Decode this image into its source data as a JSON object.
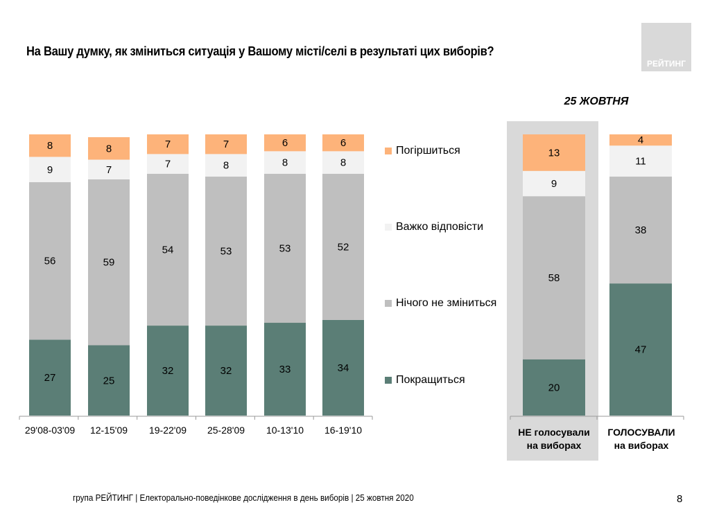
{
  "title": "На Вашу думку, як зміниться ситуація у Вашому місті/селі в результаті цих виборів?",
  "logo": "РЕЙТИНГ",
  "date_label": "25 ЖОВТНЯ",
  "footer": "група РЕЙТИНГ | Електорально-поведінкове дослідження в день виборів | 25 жовтня 2020",
  "page_number": "8",
  "colors": {
    "worse": "#fdb37a",
    "hard_to_say": "#f2f2f2",
    "no_change": "#bfbfbf",
    "better": "#5b7e76",
    "highlight": "#d9d9d9"
  },
  "legend": [
    {
      "key": "worse",
      "label": "Погіршиться"
    },
    {
      "key": "hard_to_say",
      "label": "Важко відповісти"
    },
    {
      "key": "no_change",
      "label": "Нічого не зміниться"
    },
    {
      "key": "better",
      "label": "Покращиться"
    }
  ],
  "chart_data": [
    {
      "type": "bar",
      "stacked": true,
      "title": "",
      "xlabel": "",
      "ylabel": "",
      "ylim": [
        0,
        100
      ],
      "grid": false,
      "categories": [
        "29'08-03'09",
        "12-15'09",
        "19-22'09",
        "25-28'09",
        "10-13'10",
        "16-19'10"
      ],
      "series": [
        {
          "name": "Покращиться",
          "key": "better",
          "values": [
            27,
            25,
            32,
            32,
            33,
            34
          ]
        },
        {
          "name": "Нічого не зміниться",
          "key": "no_change",
          "values": [
            56,
            59,
            54,
            53,
            53,
            52
          ]
        },
        {
          "name": "Важко відповісти",
          "key": "hard_to_say",
          "values": [
            9,
            7,
            7,
            8,
            8,
            8
          ]
        },
        {
          "name": "Погіршиться",
          "key": "worse",
          "values": [
            8,
            8,
            7,
            7,
            6,
            6
          ]
        }
      ],
      "legend": "right"
    },
    {
      "type": "bar",
      "stacked": true,
      "title": "25 ЖОВТНЯ",
      "xlabel": "",
      "ylabel": "",
      "ylim": [
        0,
        100
      ],
      "grid": false,
      "categories": [
        {
          "line1": "НЕ голосували",
          "line2": "на виборах"
        },
        {
          "line1": "ГОЛОСУВАЛИ",
          "line2": "на виборах"
        }
      ],
      "series": [
        {
          "name": "Покращиться",
          "key": "better",
          "values": [
            20,
            47
          ]
        },
        {
          "name": "Нічого не зміниться",
          "key": "no_change",
          "values": [
            58,
            38
          ]
        },
        {
          "name": "Важко відповісти",
          "key": "hard_to_say",
          "values": [
            9,
            11
          ]
        },
        {
          "name": "Погіршиться",
          "key": "worse",
          "values": [
            13,
            4
          ]
        }
      ]
    }
  ]
}
